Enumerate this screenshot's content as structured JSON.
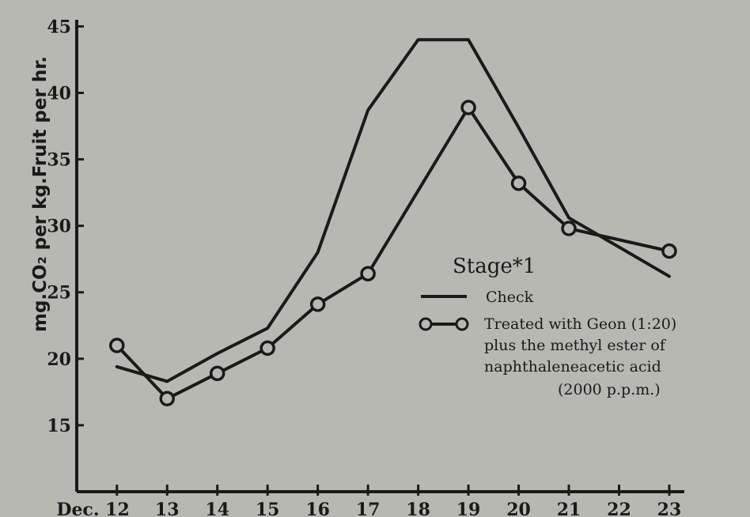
{
  "chart_data": {
    "type": "line",
    "title": "",
    "xlabel": "",
    "ylabel": "mg.CO₂ per kg.Fruit per hr.",
    "x": [
      12,
      13,
      14,
      15,
      16,
      17,
      18,
      19,
      20,
      21,
      22,
      23
    ],
    "x_tick_labels": [
      "Dec. 12",
      "13",
      "14",
      "15",
      "16",
      "17",
      "18",
      "19",
      "20",
      "21",
      "22",
      "23"
    ],
    "y_ticks": [
      15,
      20,
      25,
      30,
      35,
      40,
      45
    ],
    "xlim": [
      11.2,
      23.3
    ],
    "ylim": [
      10,
      45.5
    ],
    "grid": false,
    "legend_position": "center-right",
    "series": [
      {
        "name": "Check",
        "marker": "none",
        "x": [
          12,
          13,
          14,
          15,
          16,
          17,
          18,
          19,
          20,
          21,
          22,
          23
        ],
        "values": [
          19.4,
          18.3,
          20.4,
          22.3,
          28.0,
          38.7,
          44.0,
          44.0,
          37.4,
          30.6,
          28.4,
          26.2
        ]
      },
      {
        "name": "Treated with Geon (1:20) plus the methyl ester of naphthaleneacetic acid (2000 p.p.m.)",
        "marker": "circle",
        "x": [
          12,
          13,
          14,
          15,
          16,
          17,
          19,
          20,
          21,
          23
        ],
        "values": [
          21.0,
          17.0,
          18.9,
          20.8,
          24.1,
          26.4,
          38.9,
          33.2,
          29.8,
          28.1
        ]
      }
    ],
    "legend": {
      "title": "Stage*1",
      "entries": [
        {
          "lines": [
            "Check"
          ]
        },
        {
          "lines": [
            "Treated with Geon (1:20)",
            "plus the methyl ester of",
            "naphthaleneacetic acid",
            "(2000 p.p.m.)"
          ]
        }
      ]
    }
  }
}
